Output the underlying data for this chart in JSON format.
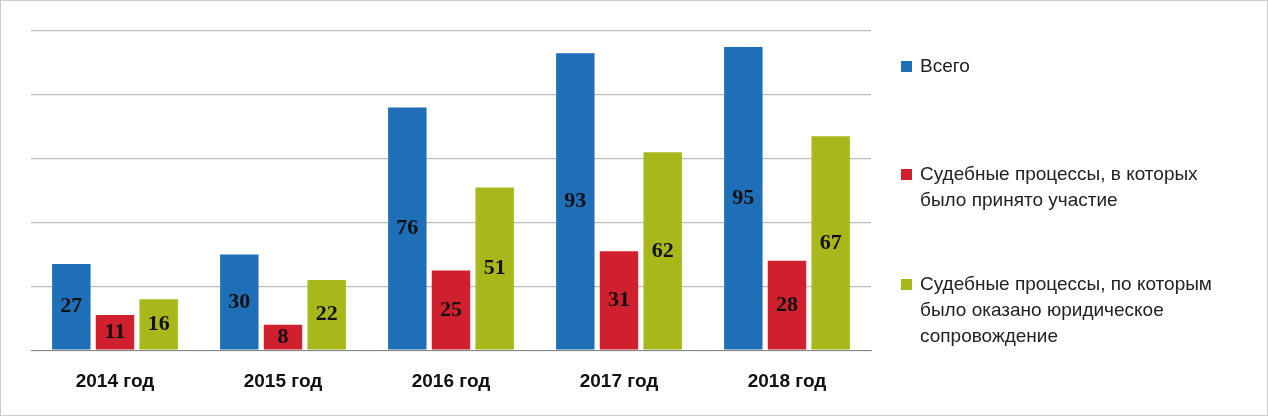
{
  "chart_data": {
    "type": "bar",
    "categories": [
      "2014 год",
      "2015 год",
      "2016 год",
      "2017 год",
      "2018 год"
    ],
    "series": [
      {
        "name": "Всего",
        "color": "#1f6fb8",
        "values": [
          27,
          30,
          76,
          93,
          95
        ]
      },
      {
        "name": "Судебные процессы, в которых было принято участие",
        "color": "#d0202e",
        "values": [
          11,
          8,
          25,
          31,
          28
        ]
      },
      {
        "name": "Судебные процессы, по которым было оказано юридическое сопровождение",
        "color": "#a8b81a",
        "values": [
          16,
          22,
          51,
          62,
          67
        ]
      }
    ],
    "tick_labels": "x",
    "grid": "y",
    "legend": "right",
    "data_labels": true
  }
}
